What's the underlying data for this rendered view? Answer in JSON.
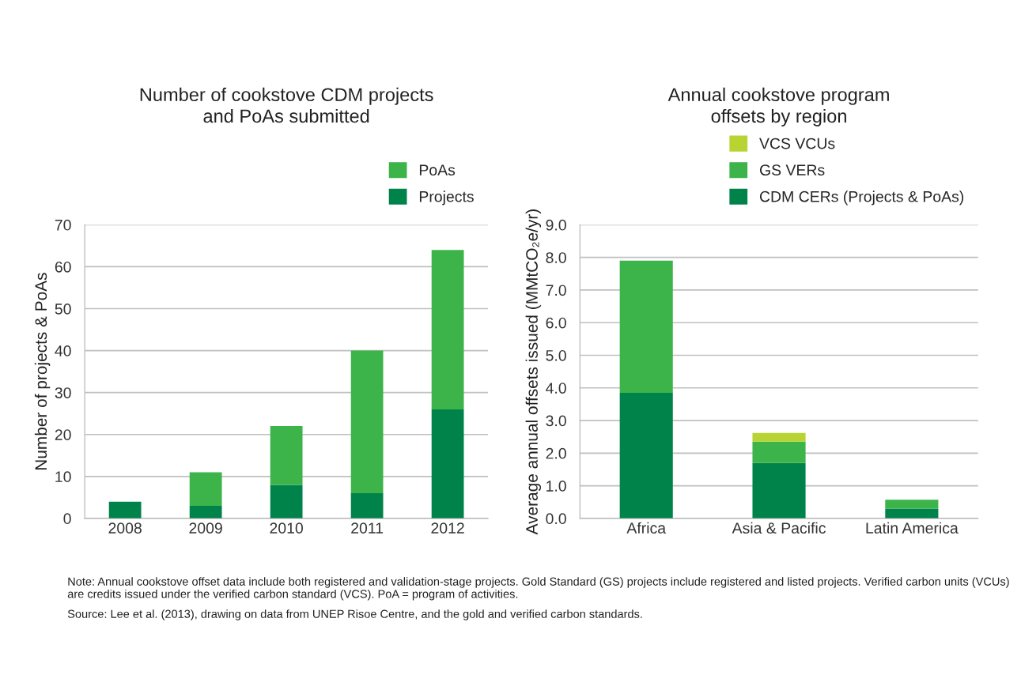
{
  "chart_data": [
    {
      "type": "bar",
      "title": "Number of cookstove CDM projects\nand PoAs submitted",
      "ylabel": "Number of projects & PoAs",
      "categories": [
        "2008",
        "2009",
        "2010",
        "2011",
        "2012"
      ],
      "stacked": true,
      "series": [
        {
          "name": "Projects",
          "color": "#00834a",
          "values": [
            4,
            3,
            8,
            6,
            26
          ]
        },
        {
          "name": "PoAs",
          "color": "#3cb44a",
          "values": [
            0,
            8,
            14,
            34,
            38
          ]
        }
      ],
      "ylim": [
        0,
        70
      ],
      "yticks": [
        0,
        10,
        20,
        30,
        40,
        50,
        60,
        70
      ],
      "grid": "y",
      "legend": "top right"
    },
    {
      "type": "bar",
      "title": "Annual cookstove program\noffsets by region",
      "ylabel": "Average annual offsets issued (MMtCO₂e/yr)",
      "categories": [
        "Africa",
        "Asia & Pacific",
        "Latin America"
      ],
      "stacked": true,
      "series": [
        {
          "name": "CDM CERs (Projects & PoAs)",
          "color": "#00834a",
          "values": [
            3.85,
            1.7,
            0.3
          ]
        },
        {
          "name": "GS VERs",
          "color": "#3cb44a",
          "values": [
            4.05,
            0.65,
            0.27
          ]
        },
        {
          "name": "VCS VCUs",
          "color": "#b7d432",
          "values": [
            0,
            0.27,
            0
          ]
        }
      ],
      "ylim": [
        0,
        9
      ],
      "yticks": [
        {
          "value": 0,
          "label": "0.0"
        },
        {
          "value": 1,
          "label": "1.0"
        },
        {
          "value": 2,
          "label": "2.0"
        },
        {
          "value": 3,
          "label": "3.0"
        },
        {
          "value": 4,
          "label": "4.0"
        },
        {
          "value": 5,
          "label": "5.0"
        },
        {
          "value": 6,
          "label": "6.0"
        },
        {
          "value": 7,
          "label": "7.0"
        },
        {
          "value": 8,
          "label": "8.0"
        },
        {
          "value": 9,
          "label": "9.0"
        }
      ],
      "grid": "y",
      "legend": "top right",
      "annotations": [
        "Note: Annual cookstove offset data include both registered and validation-stage projects. Gold Standard (GS) projects include registered and listed projects. Verified carbon units (VCUs) are credits issued under the verified carbon standard (VCS). PoA = program of activities.",
        "Source: Lee et al. (2013), drawing on data from UNEP Risoe Centre, and the gold and verified carbon standards."
      ]
    }
  ]
}
